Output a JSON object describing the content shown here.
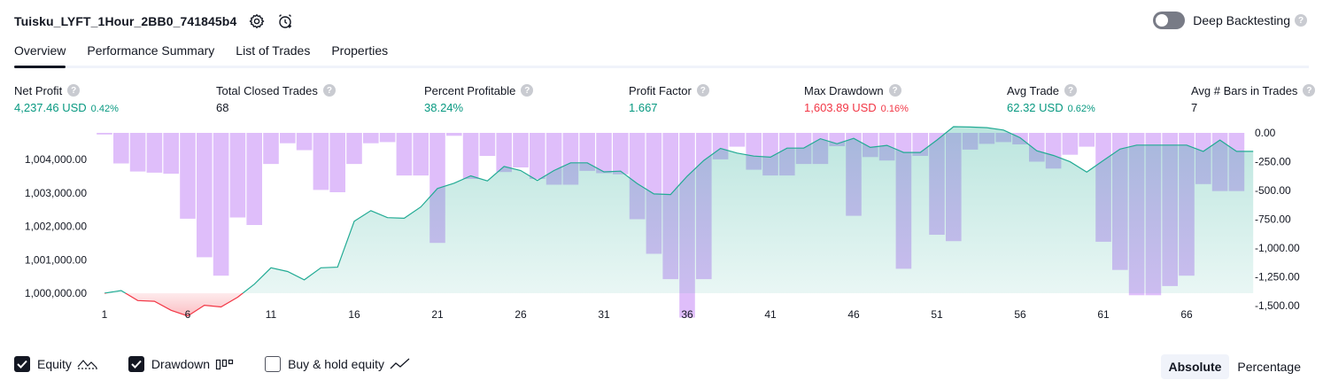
{
  "header": {
    "title": "Tuisku_LYFT_1Hour_2BB0_741845b4",
    "deep_backtesting_label": "Deep Backtesting",
    "help_glyph": "?",
    "icons": [
      "gear-icon",
      "alarm-add-icon",
      "help-icon"
    ]
  },
  "tabs": [
    {
      "label": "Overview",
      "active": true
    },
    {
      "label": "Performance Summary",
      "active": false
    },
    {
      "label": "List of Trades",
      "active": false
    },
    {
      "label": "Properties",
      "active": false
    }
  ],
  "stats": {
    "net_profit": {
      "label": "Net Profit",
      "value": "4,237.46 USD",
      "pct": "0.42%"
    },
    "total_closed_trades": {
      "label": "Total Closed Trades",
      "value": "68"
    },
    "percent_profitable": {
      "label": "Percent Profitable",
      "value": "38.24%"
    },
    "profit_factor": {
      "label": "Profit Factor",
      "value": "1.667"
    },
    "max_drawdown": {
      "label": "Max Drawdown",
      "value": "1,603.89 USD",
      "pct": "0.16%"
    },
    "avg_trade": {
      "label": "Avg Trade",
      "value": "62.32 USD",
      "pct": "0.62%"
    },
    "avg_bars": {
      "label": "Avg # Bars in Trades",
      "value": "7"
    }
  },
  "colors": {
    "profit": "#089981",
    "loss": "#f23645",
    "equity_line": "#22ab94",
    "drawdown_bar": "#c488f5"
  },
  "chart_data": {
    "type": "area",
    "x_ticks": [
      "1",
      "6",
      "11",
      "16",
      "21",
      "26",
      "31",
      "36",
      "41",
      "46",
      "51",
      "56",
      "61",
      "66"
    ],
    "left_axis_ticks": [
      "1,000,000.00",
      "1,001,000.00",
      "1,002,000.00",
      "1,003,000.00",
      "1,004,000.00"
    ],
    "right_axis_ticks": [
      "0.00",
      "-250.00",
      "-500.00",
      "-750.00",
      "-1,000.00",
      "-1,250.00",
      "-1,500.00"
    ],
    "left_ylim": [
      999200,
      1004800
    ],
    "right_ylim": [
      -1603.89,
      0
    ],
    "baseline": 1000000,
    "series": [
      {
        "name": "Equity",
        "axis": "left",
        "values": [
          1000000,
          1000080,
          999780,
          999760,
          999490,
          999320,
          999640,
          999590,
          999880,
          1000270,
          1000760,
          1000650,
          1000400,
          1000760,
          1000780,
          1002150,
          1002470,
          1002260,
          1002240,
          1002580,
          1003130,
          1003290,
          1003510,
          1003360,
          1003790,
          1003670,
          1003370,
          1003670,
          1003900,
          1003900,
          1003630,
          1003650,
          1003280,
          1002970,
          1002950,
          1003500,
          1003970,
          1004330,
          1004190,
          1004100,
          1004070,
          1004340,
          1004340,
          1004620,
          1004470,
          1004630,
          1004360,
          1004420,
          1004210,
          1004210,
          1004580,
          1004980,
          1004970,
          1004950,
          1004880,
          1004650,
          1004260,
          1004120,
          1003930,
          1003620,
          1003970,
          1004310,
          1004430,
          1004430,
          1004430,
          1004430,
          1004240,
          1004580,
          1004240,
          1004240
        ]
      },
      {
        "name": "Drawdown",
        "axis": "right",
        "values": [
          -14,
          -265,
          -335,
          -345,
          -355,
          -745,
          -1080,
          -1240,
          -735,
          -800,
          -270,
          -90,
          -150,
          -495,
          -515,
          -270,
          -90,
          -80,
          -370,
          -370,
          -955,
          -25,
          -400,
          -200,
          -340,
          -300,
          -400,
          -450,
          -450,
          -330,
          -350,
          -360,
          -750,
          -1050,
          -1270,
          -1603.89,
          -1270,
          -230,
          -120,
          -320,
          -370,
          -370,
          -270,
          -270,
          -115,
          -720,
          -210,
          -240,
          -1180,
          -200,
          -885,
          -940,
          -145,
          -95,
          -80,
          -100,
          -250,
          -310,
          -190,
          -120,
          -945,
          -1190,
          -1410,
          -1410,
          -1330,
          -1240,
          -445,
          -505,
          -505
        ]
      }
    ]
  },
  "legend": [
    {
      "label": "Equity",
      "checked": true,
      "icon": "equity-line-icon"
    },
    {
      "label": "Drawdown",
      "checked": true,
      "icon": "drawdown-bars-icon"
    },
    {
      "label": "Buy & hold equity",
      "checked": false,
      "icon": "buy-hold-line-icon"
    }
  ],
  "view_modes": [
    {
      "label": "Absolute",
      "active": true
    },
    {
      "label": "Percentage",
      "active": false
    }
  ]
}
